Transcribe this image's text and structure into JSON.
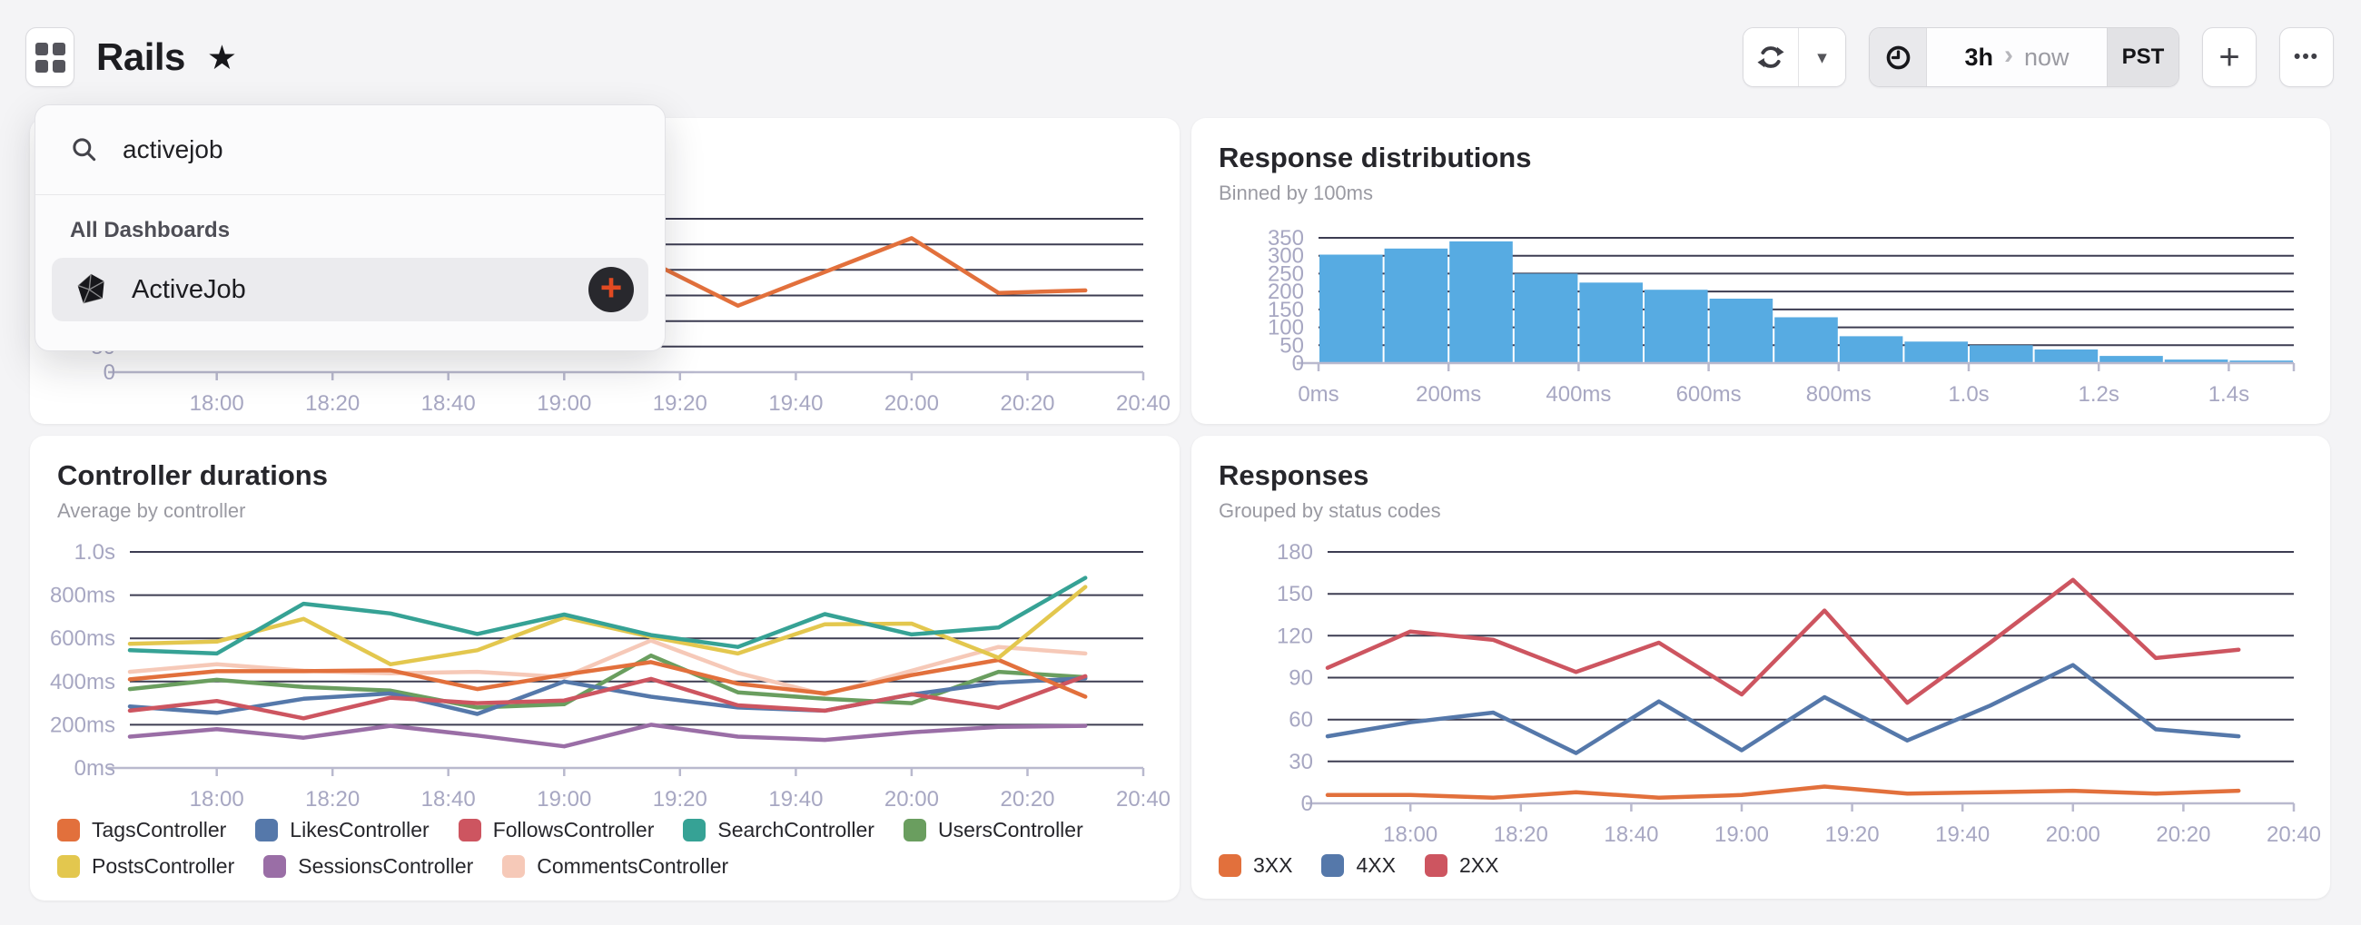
{
  "header": {
    "app_title": "Rails",
    "favorite_icon": "★",
    "caret_label": "▾",
    "add_label": "+",
    "more_label": "•••",
    "time_range": {
      "range": "3h",
      "separator": "›",
      "to": "now",
      "timezone": "PST"
    }
  },
  "search_overlay": {
    "query": "activejob",
    "section_label": "All Dashboards",
    "result": {
      "label": "ActiveJob"
    },
    "add_label": "+",
    "accent_color": "#e24a22"
  },
  "panels": {
    "top_right": {
      "title": "Response distributions",
      "subtitle": "Binned by 100ms"
    },
    "bottom_left": {
      "title": "Controller durations",
      "subtitle": "Average by controller"
    },
    "bottom_right": {
      "title": "Responses",
      "subtitle": "Grouped by status codes"
    }
  },
  "colors": {
    "page_bg": "#f4f4f6",
    "grid_line": "#3d3d52",
    "axis_line": "#b9b9ce",
    "tick_label": "#a7a7c2",
    "histogram": "#57abe2"
  },
  "chart_data": [
    {
      "id": "top-left-partial",
      "type": "line",
      "note_visible_region_only": true,
      "x_tick_labels": [
        "18:00",
        "18:20",
        "18:40",
        "19:00",
        "19:20",
        "19:40",
        "20:00",
        "20:20",
        "20:40"
      ],
      "ygrid": [
        50,
        100,
        150,
        200,
        250,
        300
      ],
      "ylim": [
        0,
        310
      ],
      "y_tick_labels": [
        {
          "v": 0,
          "label": "0"
        },
        {
          "v": 50,
          "label": "50"
        }
      ],
      "series": [
        {
          "color": "#e2703c",
          "minutes_from_1745": [
            90,
            105,
            120,
            135,
            150,
            165
          ],
          "values": [
            215,
            130,
            196,
            262,
            155,
            160
          ]
        }
      ]
    },
    {
      "id": "response-distributions",
      "type": "bar",
      "title": "Response distributions",
      "subtitle": "Binned by 100ms",
      "color": "#57abe2",
      "bin_width_ms": 100,
      "x_range_ms": [
        0,
        1500
      ],
      "values": [
        303,
        320,
        340,
        250,
        225,
        205,
        180,
        128,
        75,
        60,
        50,
        38,
        20,
        10,
        7
      ],
      "x_tick_labels": [
        "0ms",
        "200ms",
        "400ms",
        "600ms",
        "800ms",
        "1.0s",
        "1.2s",
        "1.4s"
      ],
      "ygrid": [
        50,
        100,
        150,
        200,
        250,
        300,
        350
      ],
      "ylim": [
        0,
        350
      ],
      "y_tick_labels": [
        {
          "v": 0,
          "label": "0"
        },
        {
          "v": 50,
          "label": "50"
        },
        {
          "v": 100,
          "label": "100"
        },
        {
          "v": 150,
          "label": "150"
        },
        {
          "v": 200,
          "label": "200"
        },
        {
          "v": 250,
          "label": "250"
        },
        {
          "v": 300,
          "label": "300"
        },
        {
          "v": 350,
          "label": "350"
        }
      ]
    },
    {
      "id": "controller-durations",
      "type": "line",
      "title": "Controller durations",
      "subtitle": "Average by controller",
      "unit": "ms",
      "x_start": "17:45",
      "x_step_minutes": 15,
      "x_tick_labels": [
        "18:00",
        "18:20",
        "18:40",
        "19:00",
        "19:20",
        "19:40",
        "20:00",
        "20:20",
        "20:40"
      ],
      "ygrid": [
        200,
        400,
        600,
        800,
        1000
      ],
      "ylim": [
        0,
        1050
      ],
      "y_tick_labels": [
        {
          "v": 0,
          "label": "0ms"
        },
        {
          "v": 200,
          "label": "200ms"
        },
        {
          "v": 400,
          "label": "400ms"
        },
        {
          "v": 600,
          "label": "600ms"
        },
        {
          "v": 800,
          "label": "800ms"
        },
        {
          "v": 1000,
          "label": "1.0s"
        }
      ],
      "series": [
        {
          "name": "CommentsController",
          "color": "#f6c9b8",
          "values": [
            445,
            480,
            450,
            438,
            445,
            420,
            590,
            440,
            340,
            450,
            560,
            530
          ]
        },
        {
          "name": "SessionsController",
          "color": "#9a6ea6",
          "values": [
            145,
            180,
            140,
            195,
            150,
            100,
            200,
            145,
            130,
            165,
            190,
            195
          ]
        },
        {
          "name": "UsersController",
          "color": "#6a9e5f",
          "values": [
            365,
            408,
            375,
            358,
            280,
            295,
            520,
            350,
            320,
            300,
            445,
            420
          ]
        },
        {
          "name": "LikesController",
          "color": "#5578aa",
          "values": [
            285,
            255,
            320,
            345,
            250,
            400,
            330,
            280,
            265,
            340,
            395,
            415
          ]
        },
        {
          "name": "FollowsController",
          "color": "#cd5560",
          "values": [
            265,
            310,
            230,
            325,
            300,
            312,
            412,
            290,
            265,
            341,
            278,
            425
          ]
        },
        {
          "name": "TagsController",
          "color": "#e2703c",
          "values": [
            410,
            448,
            448,
            452,
            365,
            432,
            490,
            390,
            345,
            430,
            500,
            330
          ]
        },
        {
          "name": "PostsController",
          "color": "#e3c74e",
          "values": [
            575,
            585,
            690,
            480,
            545,
            697,
            607,
            530,
            665,
            668,
            510,
            838
          ]
        },
        {
          "name": "SearchController",
          "color": "#36a295",
          "values": [
            545,
            530,
            760,
            715,
            620,
            710,
            615,
            560,
            712,
            618,
            650,
            880
          ]
        }
      ],
      "legend_rows": [
        [
          {
            "label": "TagsController",
            "color": "#e2703c"
          },
          {
            "label": "LikesController",
            "color": "#5578aa"
          },
          {
            "label": "FollowsController",
            "color": "#cd5560"
          },
          {
            "label": "SearchController",
            "color": "#36a295"
          },
          {
            "label": "UsersController",
            "color": "#6a9e5f"
          }
        ],
        [
          {
            "label": "PostsController",
            "color": "#e3c74e"
          },
          {
            "label": "SessionsController",
            "color": "#9a6ea6"
          },
          {
            "label": "CommentsController",
            "color": "#f6c9b8"
          }
        ]
      ]
    },
    {
      "id": "responses",
      "type": "line",
      "title": "Responses",
      "subtitle": "Grouped by status codes",
      "x_start": "17:45",
      "x_step_minutes": 15,
      "x_tick_labels": [
        "18:00",
        "18:20",
        "18:40",
        "19:00",
        "19:20",
        "19:40",
        "20:00",
        "20:20",
        "20:40"
      ],
      "ygrid": [
        30,
        60,
        90,
        120,
        150,
        180
      ],
      "ylim": [
        0,
        185
      ],
      "y_tick_labels": [
        {
          "v": 0,
          "label": "0"
        },
        {
          "v": 30,
          "label": "30"
        },
        {
          "v": 60,
          "label": "60"
        },
        {
          "v": 90,
          "label": "90"
        },
        {
          "v": 120,
          "label": "120"
        },
        {
          "v": 150,
          "label": "150"
        },
        {
          "v": 180,
          "label": "180"
        }
      ],
      "series": [
        {
          "name": "3XX",
          "color": "#e2703c",
          "values": [
            6,
            6,
            4,
            8,
            4,
            6,
            12,
            7,
            8,
            9,
            7,
            9
          ]
        },
        {
          "name": "4XX",
          "color": "#5578aa",
          "values": [
            48,
            58,
            65,
            36,
            73,
            38,
            76,
            45,
            70,
            99,
            53,
            48
          ]
        },
        {
          "name": "2XX",
          "color": "#cd5560",
          "values": [
            97,
            123,
            117,
            94,
            115,
            78,
            138,
            72,
            115,
            160,
            104,
            110
          ]
        }
      ],
      "legend_rows": [
        [
          {
            "label": "3XX",
            "color": "#e2703c"
          },
          {
            "label": "4XX",
            "color": "#5578aa"
          },
          {
            "label": "2XX",
            "color": "#cd5560"
          }
        ]
      ]
    }
  ]
}
